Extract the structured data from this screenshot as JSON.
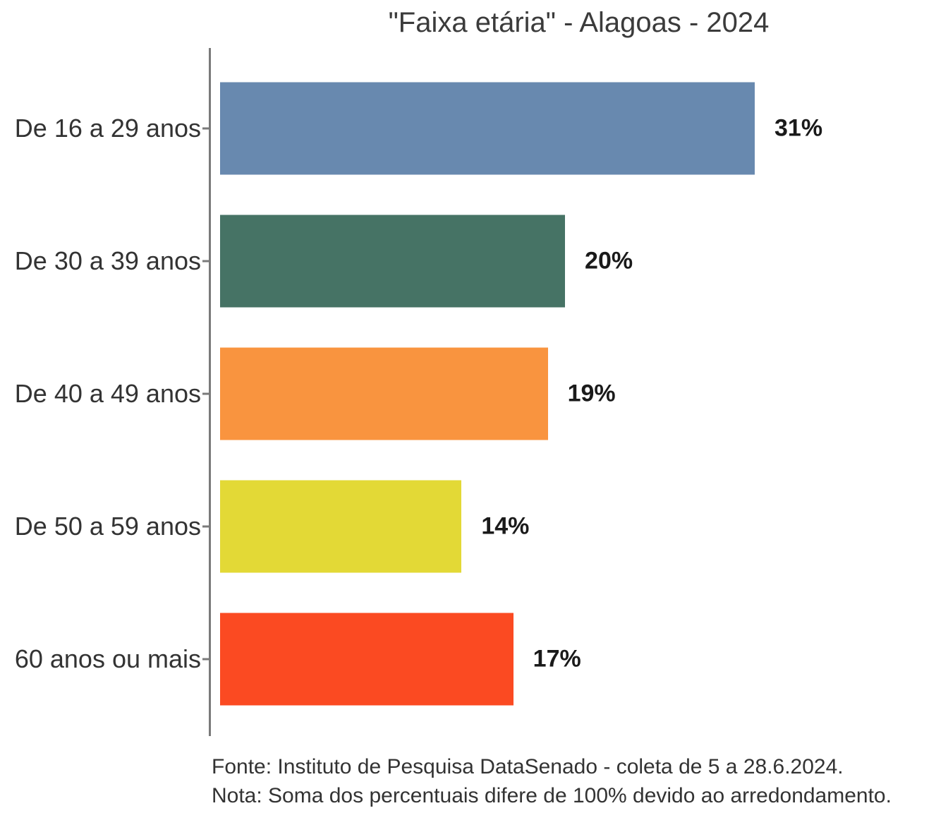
{
  "chart_data": {
    "type": "bar",
    "orientation": "horizontal",
    "title": "\"Faixa etária\" - Alagoas - 2024",
    "categories": [
      "De 16 a 29 anos",
      "De 30 a 39 anos",
      "De 40 a 49 anos",
      "De 50 a 59 anos",
      "60 anos ou mais"
    ],
    "values": [
      31,
      20,
      19,
      14,
      17
    ],
    "value_labels": [
      "31%",
      "20%",
      "19%",
      "14%",
      "17%"
    ],
    "series": [
      {
        "name": "Faixa etária",
        "values": [
          31,
          20,
          19,
          14,
          17
        ]
      }
    ],
    "bar_colors": [
      "#6889AF",
      "#467365",
      "#F9943F",
      "#E3D936",
      "#FB4A22"
    ],
    "xlabel": "",
    "ylabel": "",
    "xlim": [
      0,
      42
    ],
    "grid": false,
    "legend_position": "none",
    "axis_color": "#7a7a7a",
    "value_label_position": "right-of-bar-end"
  },
  "footer": {
    "line1": "Fonte: Instituto de Pesquisa DataSenado - coleta de 5 a 28.6.2024.",
    "line2": "Nota: Soma dos percentuais difere de 100% devido ao arredondamento."
  },
  "colors": {
    "title_text": "#3b3b3b",
    "category_text": "#333333",
    "value_text": "#1a1a1a",
    "footer_text": "#333333",
    "background": "#ffffff"
  }
}
